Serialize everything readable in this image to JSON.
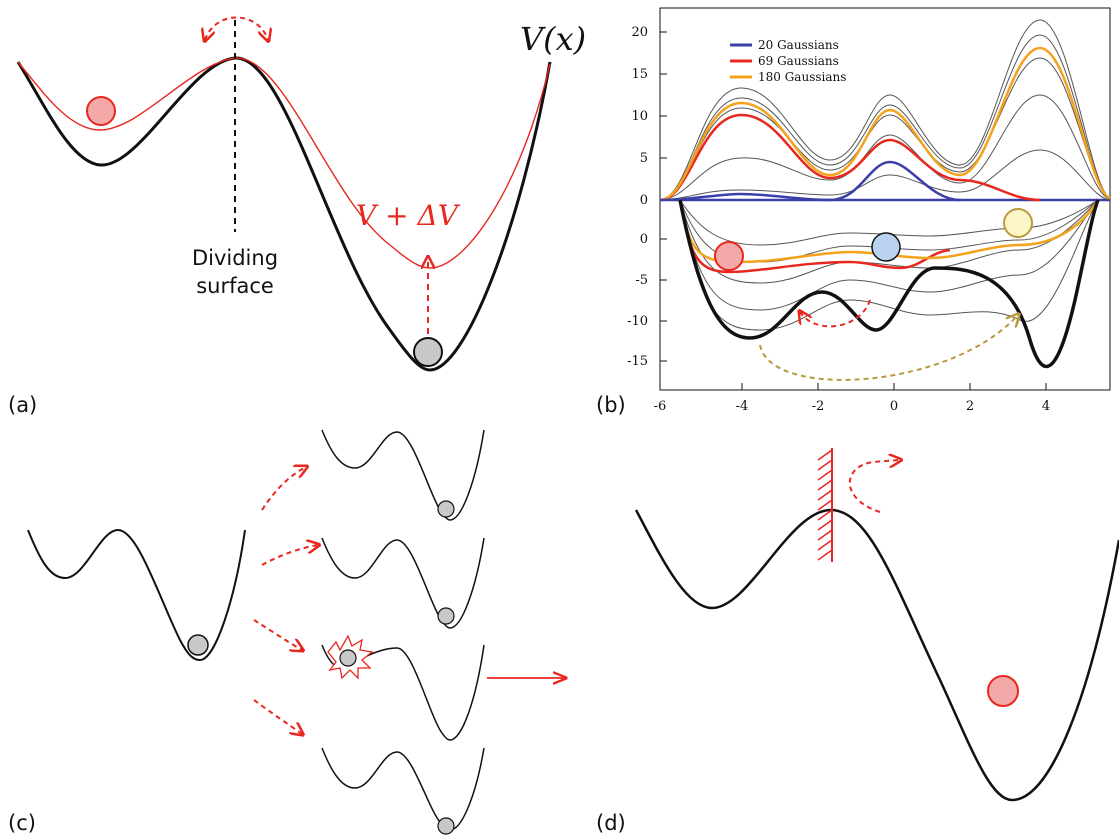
{
  "panels": {
    "a": {
      "label": "(a)",
      "potential_label": "V(x)",
      "biased_label": "V + ΔV",
      "dividing_surface": [
        "Dividing",
        "surface"
      ]
    },
    "b": {
      "label": "(b)",
      "x_ticks": [
        "-6",
        "-4",
        "-2",
        "0",
        "2",
        "4"
      ],
      "y_ticks_top": [
        "20",
        "15",
        "10",
        "5",
        "0"
      ],
      "y_ticks_bottom": [
        "0",
        "-5",
        "-10",
        "-15"
      ],
      "legend": [
        {
          "name": "20 Gaussians",
          "color": "#3b3fa8"
        },
        {
          "name": "69 Gaussians",
          "color": "#e8271f"
        },
        {
          "name": "180 Gaussians",
          "color": "#f5a21b"
        }
      ]
    },
    "c": {
      "label": "(c)"
    },
    "d": {
      "label": "(d)"
    }
  },
  "colors": {
    "red_particle": "#f4a9a9",
    "grey_particle": "#c8c8c8",
    "blue_particle": "#b9d3ee",
    "yellow_particle": "#fbf6c7",
    "accent_red": "#e8271f",
    "olive_arrow": "#b89a3b"
  }
}
